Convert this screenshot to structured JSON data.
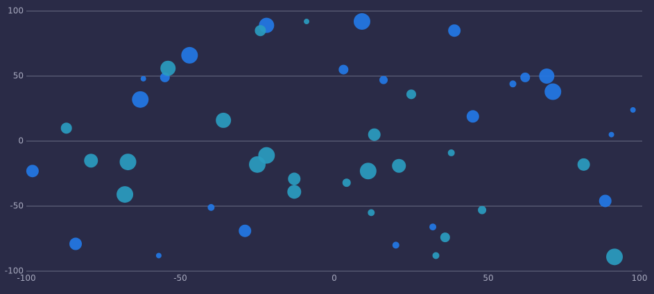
{
  "chart_data": {
    "type": "scatter",
    "title": "",
    "xlabel": "",
    "ylabel": "",
    "xlim": [
      -100,
      100
    ],
    "ylim": [
      -100,
      100
    ],
    "x_ticks": [
      -100,
      -50,
      0,
      50,
      100
    ],
    "y_ticks": [
      100,
      50,
      0,
      -50,
      -100
    ],
    "grid": "horizontal",
    "legend": "none",
    "colors": {
      "background": "#2a2b47",
      "series_blue": "#2378e6",
      "series_teal": "#2a9cc0",
      "grid": "#6a6c86",
      "tick_label": "#a6a8bd"
    },
    "series": [
      {
        "color": "#2378e6",
        "points": [
          {
            "x": -98,
            "y": -23,
            "size": 9
          },
          {
            "x": -84,
            "y": -79,
            "size": 9
          },
          {
            "x": -62,
            "y": 48,
            "size": 4
          },
          {
            "x": -63,
            "y": 32,
            "size": 12
          },
          {
            "x": -55,
            "y": 49,
            "size": 7
          },
          {
            "x": -47,
            "y": 66,
            "size": 12
          },
          {
            "x": -57,
            "y": -88,
            "size": 4
          },
          {
            "x": -40,
            "y": -51,
            "size": 5
          },
          {
            "x": -29,
            "y": -69,
            "size": 9
          },
          {
            "x": -22,
            "y": 89,
            "size": 11
          },
          {
            "x": 3,
            "y": 55,
            "size": 7
          },
          {
            "x": 9,
            "y": 92,
            "size": 12
          },
          {
            "x": 16,
            "y": 47,
            "size": 6
          },
          {
            "x": 20,
            "y": -80,
            "size": 5
          },
          {
            "x": 32,
            "y": -66,
            "size": 5
          },
          {
            "x": 39,
            "y": 85,
            "size": 9
          },
          {
            "x": 45,
            "y": 19,
            "size": 9
          },
          {
            "x": 58,
            "y": 44,
            "size": 5
          },
          {
            "x": 62,
            "y": 49,
            "size": 7
          },
          {
            "x": 69,
            "y": 50,
            "size": 11
          },
          {
            "x": 71,
            "y": 38,
            "size": 12
          },
          {
            "x": 88,
            "y": -46,
            "size": 9
          },
          {
            "x": 90,
            "y": 5,
            "size": 4
          },
          {
            "x": 97,
            "y": 24,
            "size": 4
          }
        ]
      },
      {
        "color": "#2a9cc0",
        "points": [
          {
            "x": -87,
            "y": 10,
            "size": 8
          },
          {
            "x": -79,
            "y": -15,
            "size": 10
          },
          {
            "x": -67,
            "y": -16,
            "size": 12
          },
          {
            "x": -68,
            "y": -41,
            "size": 12
          },
          {
            "x": -54,
            "y": 56,
            "size": 11
          },
          {
            "x": -36,
            "y": 16,
            "size": 11
          },
          {
            "x": -25,
            "y": -18,
            "size": 12
          },
          {
            "x": -22,
            "y": -11,
            "size": 12
          },
          {
            "x": -24,
            "y": 85,
            "size": 8
          },
          {
            "x": -9,
            "y": 92,
            "size": 4
          },
          {
            "x": -13,
            "y": -29,
            "size": 9
          },
          {
            "x": -13,
            "y": -39,
            "size": 10
          },
          {
            "x": 4,
            "y": -32,
            "size": 6
          },
          {
            "x": 11,
            "y": -23,
            "size": 12
          },
          {
            "x": 12,
            "y": -55,
            "size": 5
          },
          {
            "x": 13,
            "y": 5,
            "size": 9
          },
          {
            "x": 21,
            "y": -19,
            "size": 10
          },
          {
            "x": 25,
            "y": 36,
            "size": 7
          },
          {
            "x": 33,
            "y": -88,
            "size": 5
          },
          {
            "x": 36,
            "y": -74,
            "size": 7
          },
          {
            "x": 38,
            "y": -9,
            "size": 5
          },
          {
            "x": 48,
            "y": -53,
            "size": 6
          },
          {
            "x": 81,
            "y": -18,
            "size": 9
          },
          {
            "x": 91,
            "y": -89,
            "size": 12
          }
        ]
      }
    ]
  }
}
